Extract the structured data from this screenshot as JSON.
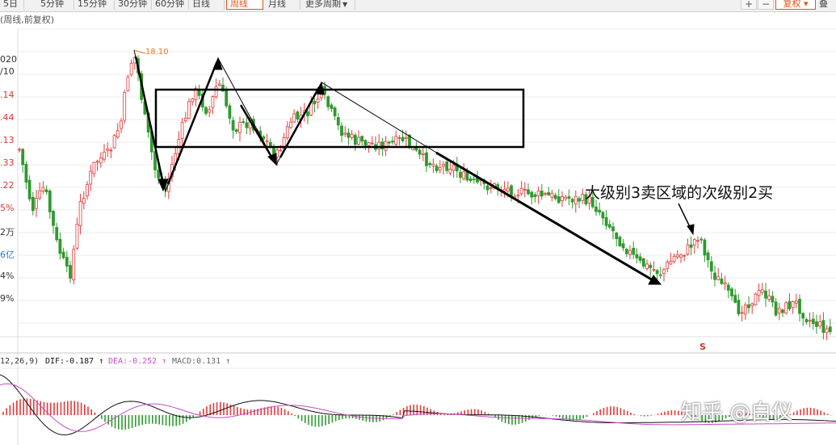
{
  "toolbar": {
    "tabs": [
      "5日",
      "5分钟",
      "15分钟",
      "30分钟",
      "60分钟",
      "日线",
      "周线",
      "月线",
      "更多周期"
    ],
    "active_tab": "周线",
    "more_dropdown_suffix": "▼",
    "plus": "+",
    "minus": "−",
    "fuquan": "复权 ▾",
    "extra": "叠"
  },
  "chart_title": "(周线,前复权)",
  "left_axis_labels": [
    {
      "text": "020",
      "color": "dark"
    },
    {
      "text": "/10",
      "color": "dark"
    },
    {
      "text": ".14",
      "color": "red"
    },
    {
      "text": ".44",
      "color": "red"
    },
    {
      "text": ".13",
      "color": "red"
    },
    {
      "text": ".33",
      "color": "red"
    },
    {
      "text": ".22",
      "color": "red"
    },
    {
      "text": "5%",
      "color": "red"
    },
    {
      "text": "2万",
      "color": "dark"
    },
    {
      "text": "6亿",
      "color": "blue"
    },
    {
      "text": "4%",
      "color": "dark"
    },
    {
      "text": "9%",
      "color": "dark"
    }
  ],
  "high_label": "18.10",
  "annotation": "大级别3卖区域的次级别2买",
  "sell_marker": "S",
  "macd": {
    "params": "12,26,9)",
    "dif": "DIF:-0.187",
    "dea": "DEA:-0.252",
    "macd": "MACD:0.131",
    "arrow": "↑"
  },
  "watermark": "知乎 @白仪",
  "colors": {
    "up": "#e23b3b",
    "down": "#2f9a2f",
    "dif": "#111111",
    "dea": "#c44dc4",
    "highlight": "#e8531c"
  },
  "chart_data": {
    "type": "candlestick",
    "period": "weekly",
    "adjustment": "前复权",
    "annotations": [
      "18.10",
      "大级别3卖区域的次级别2买"
    ],
    "indicator": {
      "name": "MACD",
      "params": [
        12,
        26,
        9
      ],
      "DIF": -0.187,
      "DEA": -0.252,
      "MACD": 0.131
    }
  }
}
